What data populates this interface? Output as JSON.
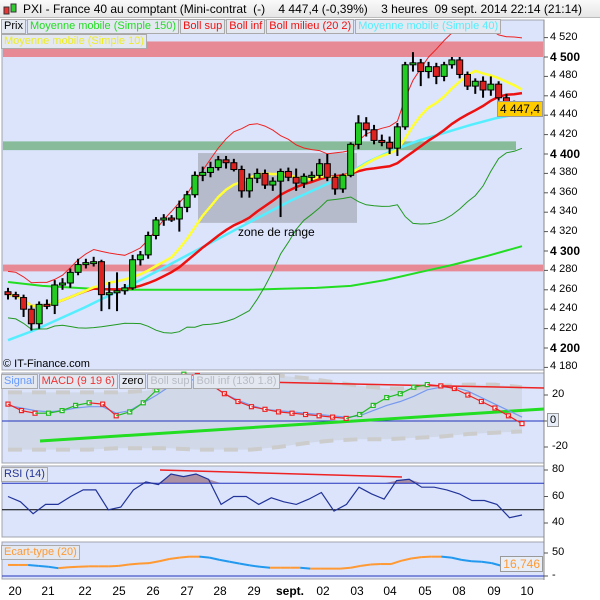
{
  "header": {
    "title": "PXI - France 40 au comptant (Mini-contrat  (-)    4 447,4 (-0,39%)    3 heures  09 sept. 2014 22:14 (21:14)"
  },
  "legend_main": [
    {
      "label": "Prix",
      "color": "#000000"
    },
    {
      "label": "Moyenne mobile (Simple 150)",
      "color": "#22dd22"
    },
    {
      "label": "Boll sup",
      "color": "#ee1111"
    },
    {
      "label": "Boll inf",
      "color": "#ee1111"
    },
    {
      "label": "Boll milieu (20 2)",
      "color": "#ee1111"
    },
    {
      "label": "Moyenne mobile (Simple 40)",
      "color": "#55eeff"
    },
    {
      "label": "Moyenne mobile (Simple 10)",
      "color": "#eeee22"
    }
  ],
  "legend_macd": [
    {
      "label": "Signal",
      "color": "#6699ff"
    },
    {
      "label": "MACD (9 19 6)",
      "color": "#ee3333"
    },
    {
      "label": "zero",
      "color": "#000000"
    },
    {
      "label": "Boll sup",
      "color": "#cccccc"
    },
    {
      "label": "Boll inf (130 1.8)",
      "color": "#cccccc"
    }
  ],
  "legend_rsi": {
    "label": "RSI (14)",
    "color": "#223399"
  },
  "legend_std": {
    "label": "Ecart-type (20)",
    "color": "#ff9933"
  },
  "copyright": "© IT-Finance.com",
  "annotation": "zone de range",
  "last_price": "4 447,4",
  "last_std": "16,746",
  "chart_data": [
    {
      "type": "candlestick",
      "title": "PXI - France 40 au comptant",
      "ylim": [
        4170,
        4530
      ],
      "y_ticks": [
        "4 520",
        "4 500",
        "4 480",
        "4 460",
        "4 440",
        "4 420",
        "4 400",
        "4 380",
        "4 360",
        "4 340",
        "4 320",
        "4 300",
        "4 280",
        "4 260",
        "4 240",
        "4 220",
        "4 200",
        "4 180"
      ],
      "x_ticks": [
        "20",
        "21",
        "22",
        "25",
        "26",
        "27",
        "28",
        "29",
        "sept.",
        "02",
        "03",
        "04",
        "05",
        "08",
        "09",
        "10"
      ],
      "candles_ohlc": [
        [
          4258,
          4262,
          4250,
          4255
        ],
        [
          4255,
          4258,
          4250,
          4253
        ],
        [
          4252,
          4255,
          4232,
          4240
        ],
        [
          4240,
          4244,
          4218,
          4225
        ],
        [
          4225,
          4248,
          4220,
          4245
        ],
        [
          4245,
          4250,
          4240,
          4244
        ],
        [
          4244,
          4270,
          4235,
          4265
        ],
        [
          4265,
          4272,
          4260,
          4267
        ],
        [
          4267,
          4282,
          4262,
          4278
        ],
        [
          4278,
          4292,
          4275,
          4286
        ],
        [
          4286,
          4292,
          4282,
          4288
        ],
        [
          4288,
          4294,
          4284,
          4289
        ],
        [
          4289,
          4291,
          4238,
          4255
        ],
        [
          4255,
          4268,
          4240,
          4257
        ],
        [
          4257,
          4278,
          4238,
          4259
        ],
        [
          4259,
          4266,
          4255,
          4262
        ],
        [
          4262,
          4296,
          4260,
          4291
        ],
        [
          4291,
          4300,
          4285,
          4296
        ],
        [
          4296,
          4320,
          4292,
          4316
        ],
        [
          4316,
          4335,
          4312,
          4332
        ],
        [
          4332,
          4338,
          4326,
          4334
        ],
        [
          4334,
          4337,
          4330,
          4333
        ],
        [
          4333,
          4352,
          4320,
          4345
        ],
        [
          4345,
          4362,
          4340,
          4358
        ],
        [
          4358,
          4382,
          4355,
          4378
        ],
        [
          4378,
          4387,
          4372,
          4381
        ],
        [
          4381,
          4392,
          4376,
          4386
        ],
        [
          4386,
          4398,
          4383,
          4394
        ],
        [
          4394,
          4398,
          4385,
          4391
        ],
        [
          4391,
          4395,
          4382,
          4384
        ],
        [
          4384,
          4388,
          4355,
          4362
        ],
        [
          4362,
          4380,
          4355,
          4375
        ],
        [
          4375,
          4385,
          4370,
          4380
        ],
        [
          4380,
          4384,
          4364,
          4368
        ],
        [
          4368,
          4376,
          4362,
          4372
        ],
        [
          4372,
          4385,
          4335,
          4382
        ],
        [
          4382,
          4386,
          4372,
          4376
        ],
        [
          4376,
          4385,
          4362,
          4370
        ],
        [
          4370,
          4380,
          4365,
          4377
        ],
        [
          4377,
          4382,
          4372,
          4378
        ],
        [
          4378,
          4395,
          4375,
          4390
        ],
        [
          4390,
          4400,
          4372,
          4376
        ],
        [
          4376,
          4380,
          4358,
          4364
        ],
        [
          4364,
          4380,
          4360,
          4378
        ],
        [
          4378,
          4412,
          4376,
          4410
        ],
        [
          4410,
          4440,
          4405,
          4432
        ],
        [
          4432,
          4438,
          4418,
          4425
        ],
        [
          4425,
          4430,
          4410,
          4414
        ],
        [
          4414,
          4420,
          4408,
          4412
        ],
        [
          4412,
          4418,
          4400,
          4406
        ],
        [
          4406,
          4432,
          4398,
          4428
        ],
        [
          4428,
          4495,
          4425,
          4492
        ],
        [
          4492,
          4505,
          4485,
          4494
        ],
        [
          4494,
          4498,
          4470,
          4485
        ],
        [
          4485,
          4495,
          4478,
          4490
        ],
        [
          4490,
          4494,
          4472,
          4480
        ],
        [
          4480,
          4495,
          4475,
          4492
        ],
        [
          4492,
          4500,
          4488,
          4497
        ],
        [
          4497,
          4500,
          4478,
          4482
        ],
        [
          4482,
          4485,
          4466,
          4470
        ],
        [
          4470,
          4478,
          4462,
          4475
        ],
        [
          4475,
          4480,
          4458,
          4466
        ],
        [
          4466,
          4480,
          4460,
          4472
        ],
        [
          4472,
          4475,
          4455,
          4458
        ],
        [
          4458,
          4462,
          4445,
          4452
        ],
        [
          4452,
          4455,
          4440,
          4444
        ],
        [
          4444,
          4450,
          4442,
          4447
        ]
      ],
      "ma150": [
        4268,
        4264,
        4262,
        4260,
        4260,
        4260,
        4260,
        4260,
        4261,
        4262,
        4264,
        4270,
        4278,
        4286,
        4295,
        4305
      ],
      "ma40": [
        4208,
        4218,
        4230,
        4242,
        4255,
        4268,
        4282,
        4296,
        4310,
        4324,
        4338,
        4352,
        4364,
        4376,
        4392,
        4404,
        4414,
        4422,
        4430,
        4437,
        4442
      ],
      "zones": [
        {
          "from": 4500,
          "to": 4516,
          "color": "#e88a96"
        },
        {
          "from": 4404,
          "to": 4413,
          "color": "#88bb99"
        },
        {
          "from": 4279,
          "to": 4286,
          "color": "#e88a96"
        }
      ],
      "range_box": {
        "from": 4329,
        "to": 4401
      }
    },
    {
      "type": "line",
      "name": "MACD (9 19 6)",
      "y_ticks": [
        "20",
        "0",
        "-20"
      ],
      "macd": [
        13,
        8,
        6,
        6,
        8,
        12,
        14,
        13,
        4,
        7,
        14,
        24,
        32,
        36,
        35,
        28,
        21,
        15,
        11,
        9,
        7,
        6,
        5,
        4,
        3,
        2,
        5,
        12,
        18,
        21,
        26,
        28,
        27,
        25,
        20,
        15,
        10,
        4,
        -2
      ],
      "signal": [
        12,
        10,
        8,
        7,
        8,
        10,
        11,
        11,
        6,
        8,
        14,
        20,
        27,
        31,
        32,
        28,
        21,
        16,
        12,
        9,
        8,
        7,
        6,
        5,
        4,
        3,
        4,
        8,
        12,
        15,
        19,
        24,
        26,
        26,
        23,
        18,
        13,
        8,
        3
      ],
      "boll_sup": [
        22,
        22,
        22,
        22,
        22,
        23,
        26,
        30,
        33,
        35,
        35,
        33,
        30,
        27,
        25,
        25,
        27,
        28,
        28,
        26
      ],
      "boll_inf": [
        -22,
        -22,
        -22,
        -22,
        -21,
        -21,
        -21,
        -22,
        -22,
        -22,
        -20,
        -17,
        -15,
        -14,
        -14,
        -13,
        -12,
        -10,
        -9,
        -8
      ]
    },
    {
      "type": "line",
      "name": "RSI (14)",
      "y_ticks": [
        "80",
        "60",
        "40"
      ],
      "levels": [
        70,
        50
      ],
      "values": [
        60,
        56,
        47,
        54,
        54,
        60,
        65,
        65,
        50,
        52,
        65,
        71,
        69,
        77,
        75,
        77,
        73,
        54,
        60,
        60,
        54,
        59,
        56,
        54,
        58,
        63,
        49,
        54,
        67,
        62,
        58,
        72,
        73,
        67,
        67,
        65,
        62,
        57,
        57,
        54,
        44,
        46
      ]
    },
    {
      "type": "line",
      "name": "Ecart-type (20)",
      "y_ticks": [
        "50",
        "-"
      ],
      "values": [
        24,
        24,
        24,
        22,
        20,
        17,
        19,
        20,
        21,
        21,
        21,
        22,
        25,
        27,
        28,
        32,
        37,
        40,
        42,
        42,
        40,
        35,
        31,
        27,
        23,
        20,
        18,
        18,
        18,
        18,
        16,
        16,
        16,
        16,
        18,
        22,
        25,
        26,
        26,
        33,
        38,
        41,
        42,
        42,
        40,
        35,
        32,
        31,
        28,
        22,
        17,
        18
      ]
    }
  ]
}
